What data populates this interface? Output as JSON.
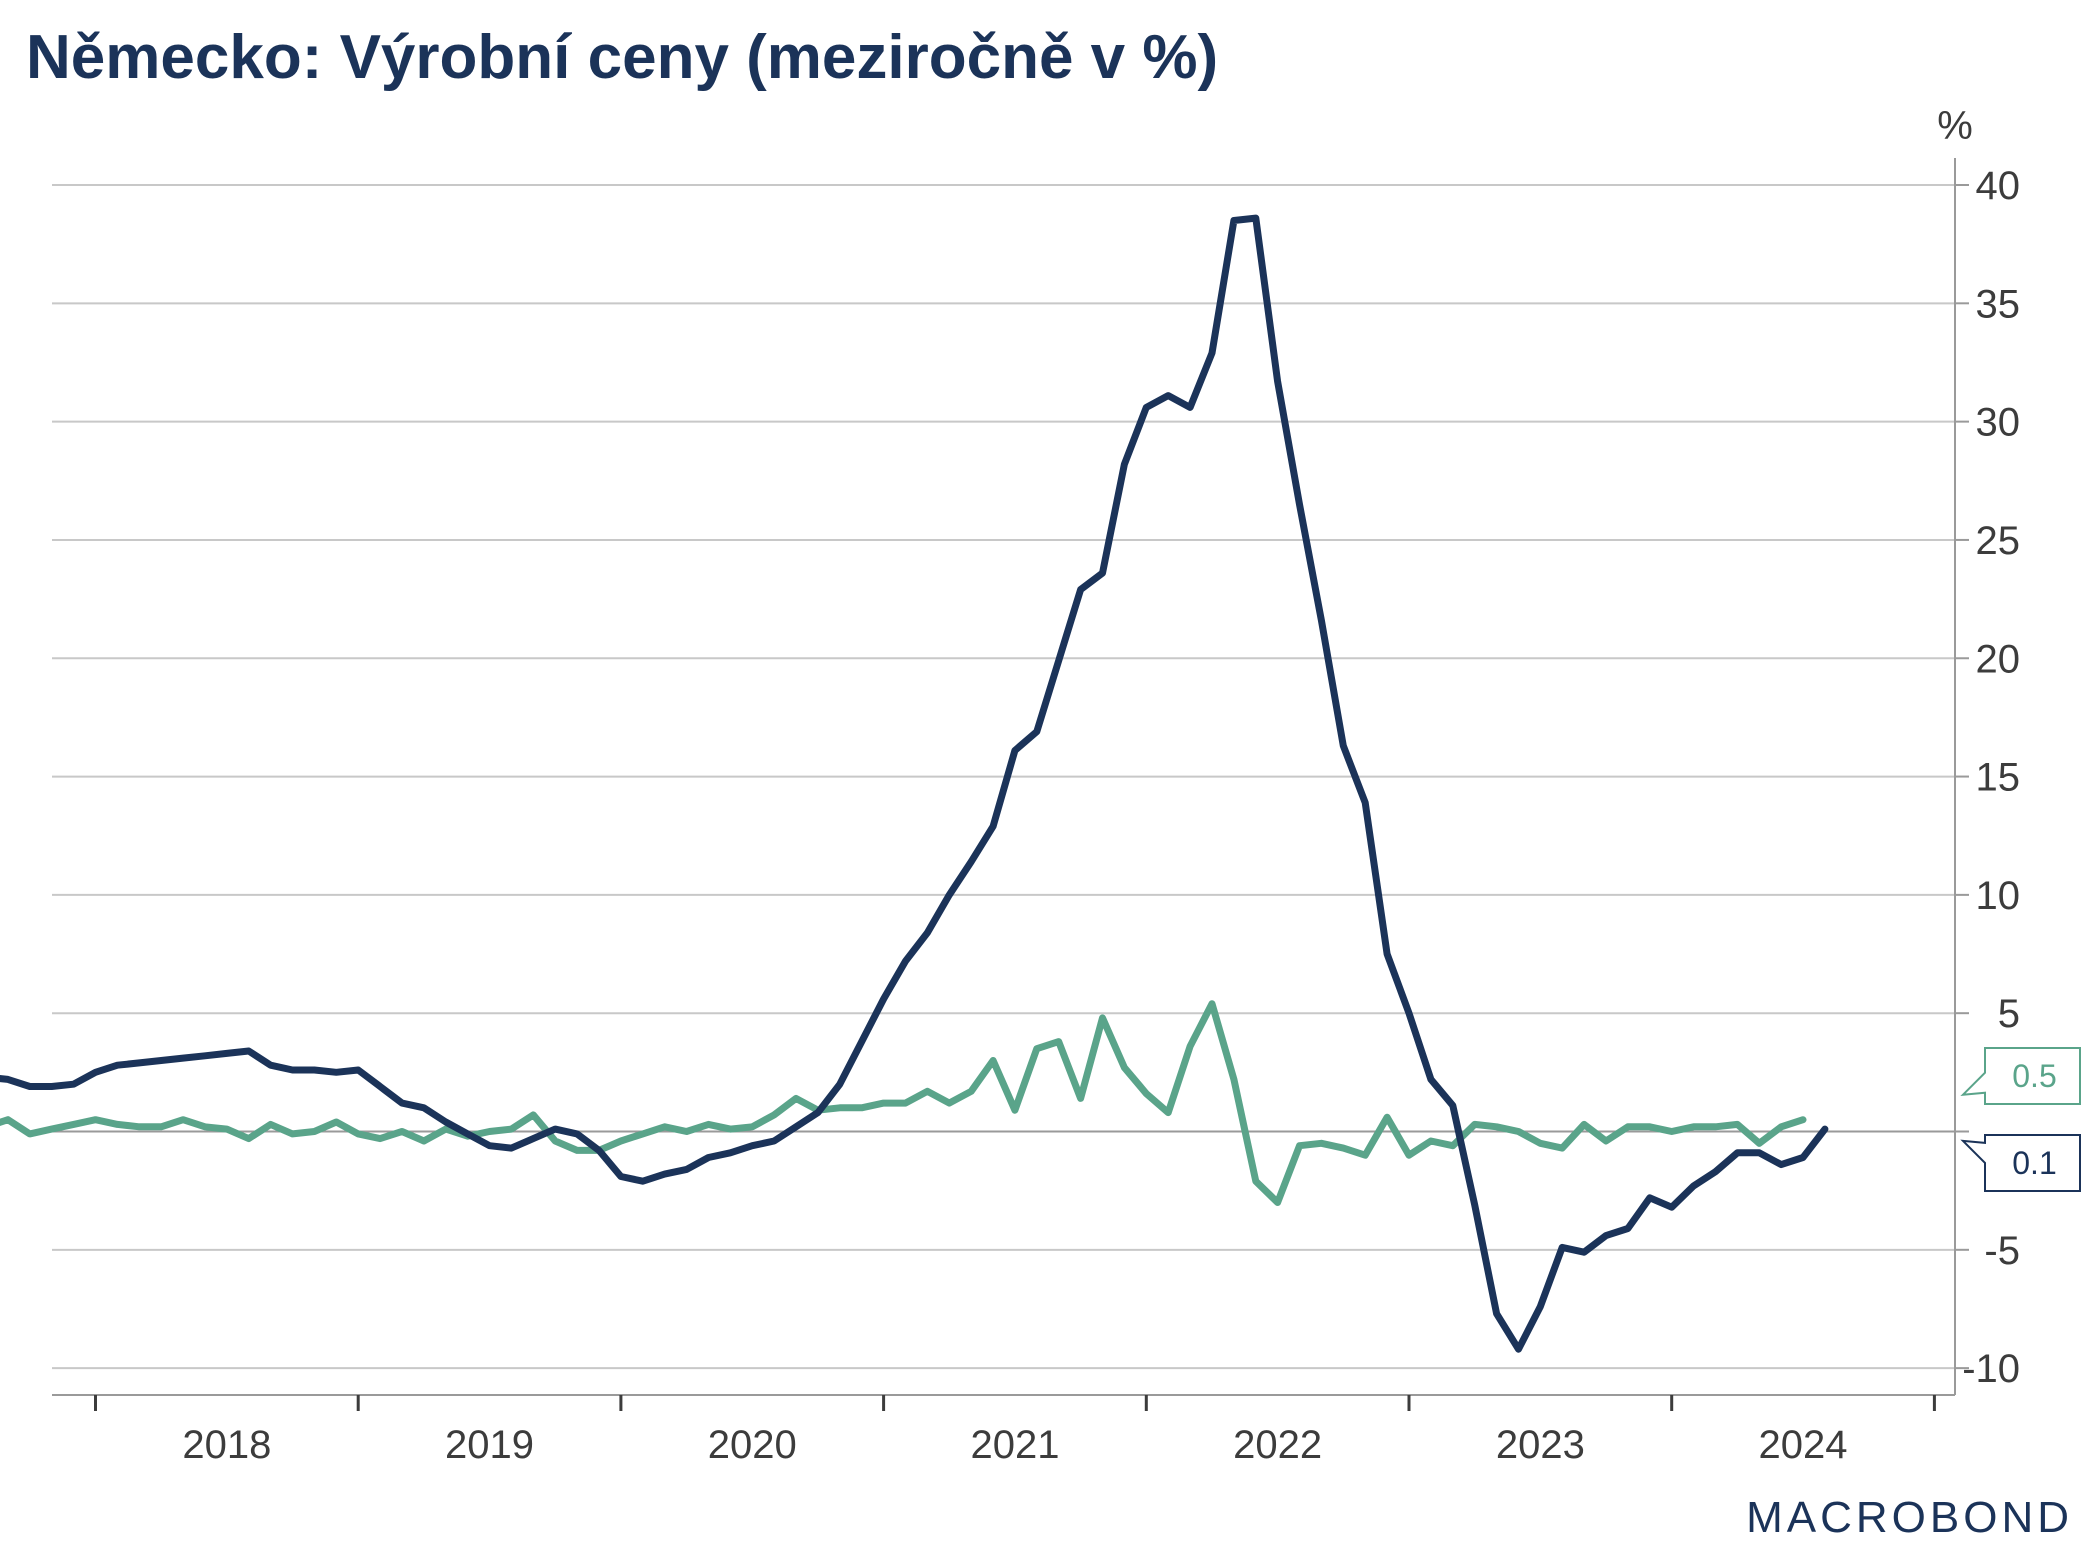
{
  "chart_data": {
    "type": "line",
    "title": "Německo: Výrobní ceny (meziročně v %)",
    "unit_label": "%",
    "ylim": [
      -12,
      40
    ],
    "y_ticks": [
      40,
      35,
      30,
      25,
      20,
      15,
      10,
      5,
      "",
      -5,
      -10
    ],
    "y_tick_values": [
      40,
      35,
      30,
      25,
      20,
      15,
      10,
      5,
      0,
      -5,
      -10
    ],
    "grid": "horizontal",
    "y_axis_side": "right",
    "x_labels": [
      "2018",
      "2019",
      "2020",
      "2021",
      "2022",
      "2023",
      "2024"
    ],
    "x_start": "2017-07",
    "series": [
      {
        "color": "#1b3359",
        "end_label": "0.1",
        "values": [
          2.5,
          2.3,
          2.2,
          1.9,
          1.9,
          2.0,
          2.5,
          2.8,
          2.9,
          3.0,
          3.1,
          3.2,
          3.3,
          3.4,
          2.8,
          2.6,
          2.6,
          2.5,
          2.6,
          1.9,
          1.2,
          1.0,
          0.4,
          -0.1,
          -0.6,
          -0.7,
          -0.3,
          0.1,
          -0.1,
          -0.8,
          -1.9,
          -2.1,
          -1.8,
          -1.6,
          -1.1,
          -0.9,
          -0.6,
          -0.4,
          0.2,
          0.8,
          2.0,
          3.8,
          5.6,
          7.2,
          8.4,
          10.0,
          11.4,
          12.9,
          16.1,
          16.9,
          19.9,
          22.9,
          23.6,
          28.2,
          30.6,
          31.1,
          30.6,
          32.9,
          38.5,
          38.6,
          31.7,
          26.5,
          21.6,
          16.3,
          13.9,
          7.5,
          5.0,
          2.2,
          1.1,
          -3.1,
          -7.7,
          -9.2,
          -7.4,
          -4.9,
          -5.1,
          -4.4,
          -4.1,
          -2.8,
          -3.2,
          -2.3,
          -1.7,
          -0.9,
          -0.9,
          -1.4,
          -1.1,
          0.1
        ]
      },
      {
        "color": "#5aa48a",
        "end_label": "0.5",
        "values": [
          0.0,
          0.2,
          0.5,
          -0.1,
          0.1,
          0.3,
          0.5,
          0.3,
          0.2,
          0.2,
          0.5,
          0.2,
          0.1,
          -0.3,
          0.3,
          -0.1,
          0.0,
          0.4,
          -0.1,
          -0.3,
          0.0,
          -0.4,
          0.1,
          -0.2,
          0.0,
          0.1,
          0.7,
          -0.4,
          -0.8,
          -0.8,
          -0.4,
          -0.1,
          0.2,
          0.0,
          0.3,
          0.1,
          0.2,
          0.7,
          1.4,
          0.9,
          1.0,
          1.0,
          1.2,
          1.2,
          1.7,
          1.2,
          1.7,
          3.0,
          0.9,
          3.5,
          3.8,
          1.4,
          4.8,
          2.7,
          1.6,
          0.8,
          3.6,
          5.4,
          2.2,
          -2.1,
          -3.0,
          -0.6,
          -0.5,
          -0.7,
          -1.0,
          0.6,
          -1.0,
          -0.4,
          -0.6,
          0.3,
          0.2,
          0.0,
          -0.5,
          -0.7,
          0.3,
          -0.4,
          0.2,
          0.2,
          0.0,
          0.2,
          0.2,
          0.3,
          -0.5,
          0.2,
          0.5
        ]
      }
    ]
  },
  "branding": {
    "logo_text": "MACROBOND"
  }
}
